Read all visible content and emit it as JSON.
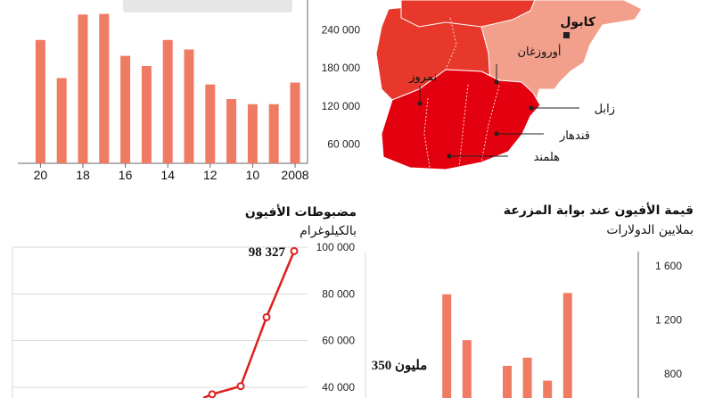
{
  "colors": {
    "bar": "#ef7b63",
    "line": "#dd1f1f",
    "axis": "#666666",
    "grid": "#d9d9d9",
    "map_dark": "#e3000f",
    "map_mid": "#e8382b",
    "map_light": "#f2a08c"
  },
  "chart_data": [
    {
      "id": "top-left",
      "type": "bar",
      "title": "",
      "categories": [
        "2008",
        "2009",
        "2010",
        "2011",
        "2012",
        "2013",
        "2014",
        "2015",
        "2016",
        "2017",
        "2018",
        "2019",
        "2020"
      ],
      "values": [
        157000,
        123000,
        123000,
        131000,
        154000,
        209000,
        224000,
        183000,
        199000,
        265000,
        264000,
        164000,
        224000
      ],
      "ylim": [
        30000,
        270000
      ],
      "y_ticks": [
        60000,
        120000,
        180000,
        240000
      ],
      "y_tick_labels": [
        "60 000",
        "120 000",
        "180 000",
        "240 000"
      ],
      "x_tick_labels": [
        "2008",
        "10",
        "12",
        "14",
        "16",
        "18",
        "20"
      ],
      "x_tick_categories": [
        "2008",
        "2010",
        "2012",
        "2014",
        "2016",
        "2018",
        "2020"
      ],
      "grid": false
    },
    {
      "id": "seizures",
      "type": "line",
      "title": "مضبوطات الأفيون",
      "subtitle": "بالكيلوغرام",
      "values": [
        37000,
        40500,
        70000,
        98327
      ],
      "ylim": [
        30000,
        100000
      ],
      "y_ticks": [
        40000,
        60000,
        80000,
        100000
      ],
      "y_tick_labels": [
        "40 000",
        "60 000",
        "80 000",
        "100 000"
      ],
      "annotation": "98 327",
      "grid": true
    },
    {
      "id": "farmgate",
      "type": "bar",
      "title": "قيمة الأفيون عند بوابة المزرعة",
      "subtitle": "بملايين الدولارات",
      "values": [
        null,
        null,
        1390,
        1050,
        null,
        860,
        920,
        750,
        1400
      ],
      "ylim": [
        600,
        1650
      ],
      "y_ticks": [
        800,
        1200,
        1600
      ],
      "y_tick_labels": [
        "800",
        "1 200",
        "1 600"
      ],
      "annotation": "350 مليون",
      "grid": false
    }
  ],
  "map": {
    "labels": {
      "kabul": "كابول",
      "uruzgan": "أوروزغان",
      "nimruz": "نمروز",
      "zabul": "زابل",
      "kandahar": "قندهار",
      "helmand": "هلمند"
    }
  }
}
